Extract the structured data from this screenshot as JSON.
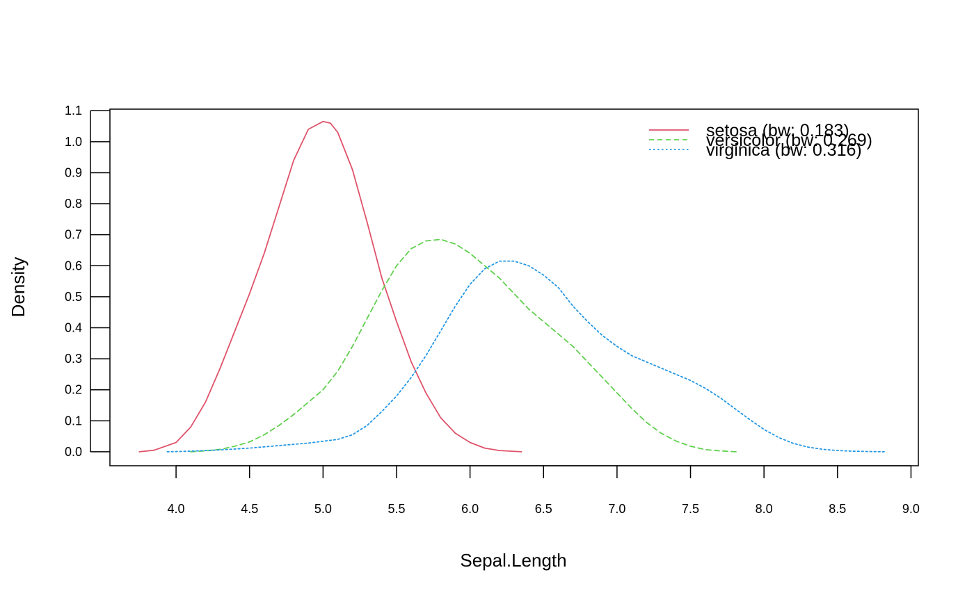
{
  "chart_data": {
    "type": "line",
    "xlabel": "Sepal.Length",
    "ylabel": "Density",
    "xlim": [
      3.55,
      9.05
    ],
    "ylim": [
      -0.045,
      1.105
    ],
    "x_ticks": [
      4.0,
      4.5,
      5.0,
      5.5,
      6.0,
      6.5,
      7.0,
      7.5,
      8.0,
      8.5,
      9.0
    ],
    "x_tick_labels": [
      "4.0",
      "4.5",
      "5.0",
      "5.5",
      "6.0",
      "6.5",
      "7.0",
      "7.5",
      "8.0",
      "8.5",
      "9.0"
    ],
    "y_ticks": [
      0.0,
      0.1,
      0.2,
      0.3,
      0.4,
      0.5,
      0.6,
      0.7,
      0.8,
      0.9,
      1.0,
      1.1
    ],
    "y_tick_labels": [
      "0.0",
      "0.1",
      "0.2",
      "0.3",
      "0.4",
      "0.5",
      "0.6",
      "0.7",
      "0.8",
      "0.9",
      "1.0",
      "1.1"
    ],
    "grid": false,
    "legend_position": "top-right",
    "series": [
      {
        "name": "setosa (bw: 0.183)",
        "color": "#DF536B",
        "dash": "solid",
        "x": [
          3.75,
          3.85,
          4.0,
          4.1,
          4.2,
          4.3,
          4.4,
          4.5,
          4.6,
          4.7,
          4.8,
          4.9,
          5.0,
          5.05,
          5.1,
          5.2,
          5.3,
          5.4,
          5.5,
          5.6,
          5.7,
          5.8,
          5.9,
          6.0,
          6.1,
          6.2,
          6.35
        ],
        "y": [
          0.0,
          0.005,
          0.03,
          0.08,
          0.16,
          0.27,
          0.39,
          0.51,
          0.64,
          0.79,
          0.94,
          1.04,
          1.065,
          1.06,
          1.03,
          0.91,
          0.74,
          0.56,
          0.42,
          0.29,
          0.19,
          0.11,
          0.06,
          0.03,
          0.012,
          0.004,
          0.0
        ]
      },
      {
        "name": "versicolor (bw: 0.269)",
        "color": "#61D04F",
        "dash": "dashed",
        "x": [
          4.1,
          4.2,
          4.3,
          4.4,
          4.5,
          4.6,
          4.7,
          4.8,
          4.9,
          5.0,
          5.1,
          5.2,
          5.3,
          5.4,
          5.5,
          5.6,
          5.7,
          5.8,
          5.9,
          6.0,
          6.1,
          6.2,
          6.3,
          6.4,
          6.5,
          6.6,
          6.7,
          6.8,
          6.9,
          7.0,
          7.1,
          7.2,
          7.3,
          7.4,
          7.5,
          7.6,
          7.7,
          7.81
        ],
        "y": [
          0.0,
          0.003,
          0.008,
          0.018,
          0.032,
          0.055,
          0.085,
          0.12,
          0.16,
          0.2,
          0.26,
          0.34,
          0.43,
          0.52,
          0.6,
          0.655,
          0.68,
          0.685,
          0.67,
          0.64,
          0.6,
          0.56,
          0.51,
          0.46,
          0.42,
          0.38,
          0.34,
          0.29,
          0.24,
          0.19,
          0.14,
          0.095,
          0.06,
          0.035,
          0.018,
          0.007,
          0.003,
          0.0
        ]
      },
      {
        "name": "virginica (bw: 0.316)",
        "color": "#2297E6",
        "dash": "dotted",
        "x": [
          3.94,
          4.1,
          4.3,
          4.5,
          4.7,
          4.9,
          5.1,
          5.2,
          5.3,
          5.4,
          5.5,
          5.6,
          5.7,
          5.8,
          5.9,
          6.0,
          6.1,
          6.2,
          6.3,
          6.4,
          6.5,
          6.6,
          6.7,
          6.8,
          6.9,
          7.0,
          7.1,
          7.2,
          7.3,
          7.4,
          7.5,
          7.6,
          7.7,
          7.8,
          7.9,
          8.0,
          8.1,
          8.2,
          8.3,
          8.4,
          8.5,
          8.6,
          8.7,
          8.83
        ],
        "y": [
          0.0,
          0.002,
          0.006,
          0.012,
          0.02,
          0.028,
          0.04,
          0.055,
          0.085,
          0.13,
          0.18,
          0.24,
          0.31,
          0.39,
          0.47,
          0.54,
          0.59,
          0.615,
          0.615,
          0.6,
          0.57,
          0.53,
          0.47,
          0.42,
          0.375,
          0.34,
          0.31,
          0.29,
          0.27,
          0.25,
          0.23,
          0.205,
          0.175,
          0.14,
          0.105,
          0.072,
          0.046,
          0.027,
          0.015,
          0.008,
          0.004,
          0.002,
          0.001,
          0.0
        ]
      }
    ]
  }
}
